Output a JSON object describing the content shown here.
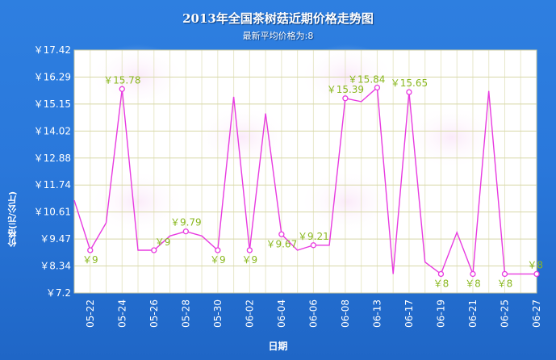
{
  "title": "2013年全国茶树菇近期价格走势图",
  "subtitle": "最新平均价格为:8",
  "chart_data": {
    "type": "line",
    "ylabel": "价格(元/公斤)",
    "xlabel": "日期",
    "ylim": [
      7.2,
      17.42
    ],
    "y_ticks": [
      "￥17.42",
      "￥16.29",
      "￥15.15",
      "￥14.02",
      "￥12.88",
      "￥11.74",
      "￥10.61",
      "￥9.47",
      "￥8.34",
      "￥7.2"
    ],
    "x_tick_labels": [
      "05-22",
      "05-24",
      "05-26",
      "05-28",
      "05-30",
      "06-02",
      "06-04",
      "06-06",
      "06-08",
      "06-13",
      "06-17",
      "06-19",
      "06-21",
      "06-25",
      "06-27"
    ],
    "series": [
      {
        "color": "#e83be0",
        "values": [
          11.1,
          9.0,
          10.15,
          15.78,
          9.0,
          9.0,
          9.6,
          9.79,
          9.6,
          9.0,
          15.45,
          9.0,
          14.75,
          9.67,
          9.0,
          9.21,
          9.21,
          15.39,
          15.25,
          15.84,
          8.0,
          15.65,
          8.5,
          8.0,
          9.75,
          8.0,
          15.7,
          8.0,
          8.0,
          8.0
        ]
      }
    ],
    "data_labels": [
      {
        "index": 1,
        "text": "￥9",
        "pos": "below"
      },
      {
        "index": 3,
        "text": "￥15.78",
        "pos": "above"
      },
      {
        "index": 5,
        "text": "￥9",
        "pos": "above-right"
      },
      {
        "index": 7,
        "text": "￥9.79",
        "pos": "above"
      },
      {
        "index": 9,
        "text": "￥9",
        "pos": "below"
      },
      {
        "index": 11,
        "text": "￥9",
        "pos": "below"
      },
      {
        "index": 13,
        "text": "￥9.67",
        "pos": "below"
      },
      {
        "index": 15,
        "text": "￥9.21",
        "pos": "above"
      },
      {
        "index": 17,
        "text": "￥15.39",
        "pos": "above"
      },
      {
        "index": 19,
        "text": "￥15.84",
        "pos": "above-left"
      },
      {
        "index": 21,
        "text": "￥15.65",
        "pos": "above"
      },
      {
        "index": 23,
        "text": "￥8",
        "pos": "below"
      },
      {
        "index": 25,
        "text": "￥8",
        "pos": "below"
      },
      {
        "index": 27,
        "text": "￥8",
        "pos": "below"
      },
      {
        "index": 29,
        "text": "￥8",
        "pos": "above"
      }
    ],
    "grid": true
  },
  "colors": {
    "background": "#2a78db",
    "plot_background": "#ffffff",
    "grid": "#d8d8a8",
    "line": "#e83be0",
    "label": "#8ab820"
  }
}
